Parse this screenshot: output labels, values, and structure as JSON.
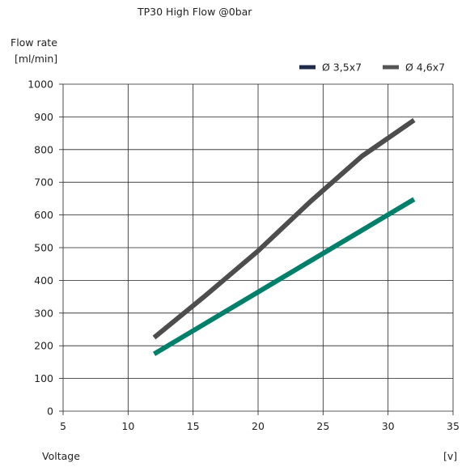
{
  "chart_data": {
    "type": "line",
    "title": "TP30 High Flow @0bar",
    "ylabel": "Flow rate",
    "yunit": "[ml/min]",
    "xlabel": "Voltage",
    "xunit": "[v]",
    "xlim": [
      5,
      35
    ],
    "ylim": [
      0,
      1000
    ],
    "xticks": [
      5,
      10,
      15,
      20,
      25,
      30,
      35
    ],
    "yticks": [
      0,
      100,
      200,
      300,
      400,
      500,
      600,
      700,
      800,
      900,
      1000
    ],
    "grid": true,
    "legend_position": "top-right",
    "series": [
      {
        "name": "Ø 3,5x7",
        "legend_color": "#1e2a4a",
        "color": "#00806a",
        "points": [
          [
            12,
            175
          ],
          [
            32,
            648
          ]
        ]
      },
      {
        "name": "Ø 4,6x7",
        "legend_color": "#555555",
        "color": "#4d4d4d",
        "points": [
          [
            12,
            225
          ],
          [
            16,
            355
          ],
          [
            20,
            490
          ],
          [
            24,
            640
          ],
          [
            28,
            780
          ],
          [
            32,
            890
          ]
        ]
      }
    ]
  }
}
